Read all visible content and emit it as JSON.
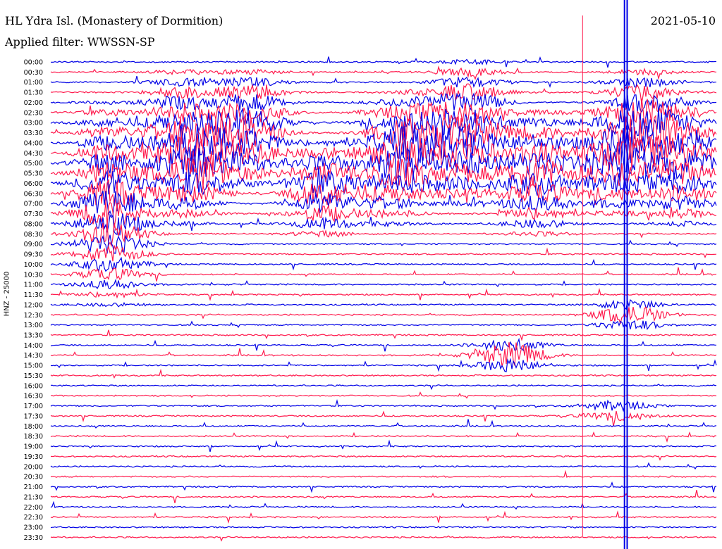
{
  "header": {
    "station": "HL Ydra Isl. (Monastery of Dormition)",
    "filter": "Applied filter: WWSSN-SP",
    "date": "2021-05-10"
  },
  "chart_data": {
    "type": "line",
    "title": "HL Ydra Isl. (Monastery of Dormition)",
    "subtitle": "Applied filter: WWSSN-SP",
    "ylabel": "HNZ - 25000",
    "grid": false,
    "colors": {
      "even_trace": "#0000e6",
      "odd_trace": "#ff1a4d",
      "marker": "#0000e6"
    },
    "time_labels": [
      "00:00",
      "00:30",
      "01:00",
      "01:30",
      "02:00",
      "02:30",
      "03:00",
      "03:30",
      "04:00",
      "04:30",
      "05:00",
      "05:30",
      "06:00",
      "06:30",
      "07:00",
      "07:30",
      "08:00",
      "08:30",
      "09:00",
      "09:30",
      "10:00",
      "10:30",
      "11:00",
      "11:30",
      "12:00",
      "12:30",
      "13:00",
      "13:30",
      "14:00",
      "14:30",
      "15:00",
      "15:30",
      "16:00",
      "16:30",
      "17:00",
      "17:30",
      "18:00",
      "18:30",
      "19:00",
      "19:30",
      "20:00",
      "20:30",
      "21:00",
      "21:30",
      "22:00",
      "22:30",
      "23:00",
      "23:30"
    ],
    "trace_duration_min": 30,
    "activity_bursts": [
      {
        "x": 0.09,
        "from_row": 4,
        "to_row": 24,
        "peak": 1.0
      },
      {
        "x": 0.2,
        "from_row": 1,
        "to_row": 16,
        "peak": 1.0
      },
      {
        "x": 0.24,
        "from_row": 6,
        "to_row": 13,
        "peak": 0.7
      },
      {
        "x": 0.3,
        "from_row": 1,
        "to_row": 12,
        "peak": 0.9
      },
      {
        "x": 0.41,
        "from_row": 8,
        "to_row": 17,
        "peak": 0.9
      },
      {
        "x": 0.51,
        "from_row": 4,
        "to_row": 16,
        "peak": 0.8
      },
      {
        "x": 0.56,
        "from_row": 3,
        "to_row": 13,
        "peak": 0.8
      },
      {
        "x": 0.63,
        "from_row": 0,
        "to_row": 14,
        "peak": 1.0
      },
      {
        "x": 0.73,
        "from_row": 5,
        "to_row": 17,
        "peak": 0.9
      },
      {
        "x": 0.84,
        "from_row": 5,
        "to_row": 15,
        "peak": 0.8
      },
      {
        "x": 0.89,
        "from_row": 1,
        "to_row": 12,
        "peak": 1.0
      },
      {
        "x": 0.95,
        "from_row": 4,
        "to_row": 16,
        "peak": 0.9
      },
      {
        "x": 0.69,
        "from_row": 28,
        "to_row": 30,
        "peak": 0.8
      },
      {
        "x": 0.87,
        "from_row": 24,
        "to_row": 26,
        "peak": 0.6
      },
      {
        "x": 0.85,
        "from_row": 34,
        "to_row": 35,
        "peak": 0.4
      }
    ],
    "vertical_markers": [
      {
        "x": 0.862,
        "color": "#0000e6"
      },
      {
        "x": 0.866,
        "color": "#0000e6"
      },
      {
        "x": 0.799,
        "color": "#ff1a4d"
      }
    ]
  }
}
